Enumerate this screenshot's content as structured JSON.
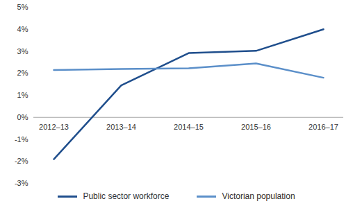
{
  "chart_data": {
    "type": "line",
    "categories": [
      "2012–13",
      "2013–14",
      "2014–15",
      "2015–16",
      "2016–17"
    ],
    "series": [
      {
        "name": "Public sector workforce",
        "color": "#1f4e8c",
        "values": [
          -1.9,
          1.45,
          2.92,
          3.02,
          4.0
        ]
      },
      {
        "name": "Victorian population",
        "color": "#5b8fc9",
        "values": [
          2.15,
          2.2,
          2.23,
          2.45,
          1.8
        ]
      }
    ],
    "ylim": [
      -3,
      5
    ],
    "yticks": [
      {
        "value": -3,
        "label": "-3%"
      },
      {
        "value": -2,
        "label": "-2%"
      },
      {
        "value": -1,
        "label": "-1%"
      },
      {
        "value": 0,
        "label": "0%"
      },
      {
        "value": 1,
        "label": "1%"
      },
      {
        "value": 2,
        "label": "2%"
      },
      {
        "value": 3,
        "label": "3%"
      },
      {
        "value": 4,
        "label": "4%"
      },
      {
        "value": 5,
        "label": "5%"
      }
    ],
    "grid": false,
    "legend": "bottom"
  }
}
